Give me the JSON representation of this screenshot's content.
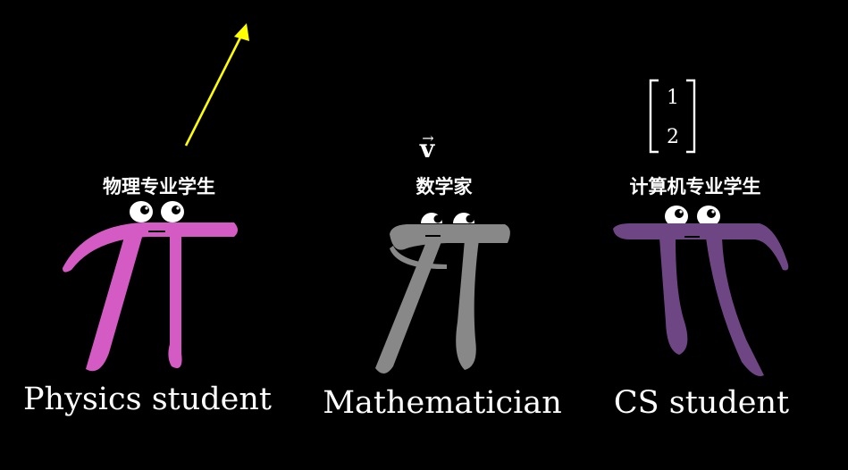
{
  "characters": [
    {
      "key": "physics",
      "label_cn": "物理专业学生",
      "label_en": "Physics student",
      "color": "#d55bc4"
    },
    {
      "key": "math",
      "label_cn": "数学家",
      "label_en": "Mathematician",
      "color": "#888888"
    },
    {
      "key": "cs",
      "label_cn": "计算机专业学生",
      "label_en": "CS student",
      "color": "#6e4684"
    }
  ],
  "physics_arrow": {
    "color": "#ffff00"
  },
  "math_symbol": {
    "text": "v",
    "accent": "→"
  },
  "cs_matrix": {
    "top": "1",
    "bottom": "2"
  },
  "background": "#000000"
}
